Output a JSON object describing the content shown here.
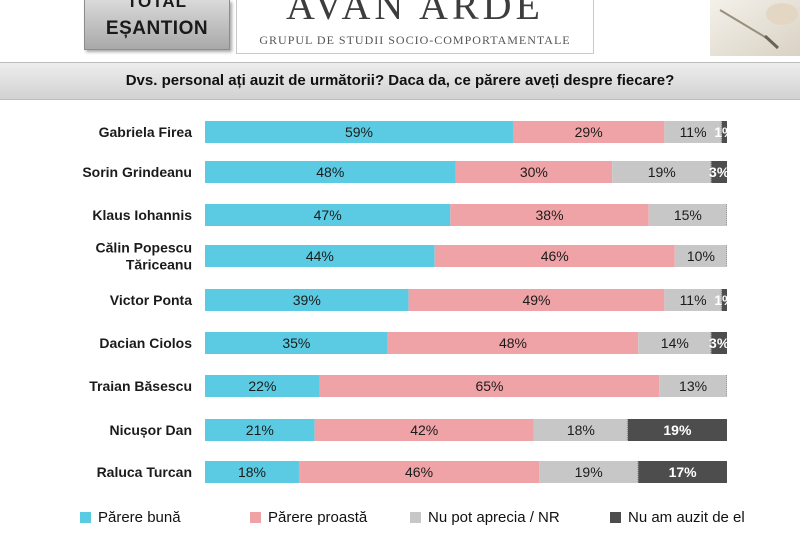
{
  "header": {
    "sample_top": "TOTAL",
    "sample_label": "EȘANTION",
    "logo_text": "AVAN   ARDE",
    "logo_subtitle": "GRUPUL DE STUDII SOCIO-COMPORTAMENTALE"
  },
  "question": "Dvs. personal ați auzit de următorii? Daca da, ce părere aveți despre fiecare?",
  "colors": {
    "good": "#5bcbe3",
    "bad": "#f0a3a6",
    "cannot": "#c7c7c7",
    "unheard": "#4d4d4d",
    "question_band": "#dedede"
  },
  "chart_data": {
    "type": "bar",
    "orientation": "horizontal",
    "stacked": true,
    "unit": "%",
    "categories": [
      [
        "Gabriela Firea"
      ],
      [
        "Sorin Grindeanu"
      ],
      [
        "Klaus Iohannis"
      ],
      [
        "Călin Popescu",
        "Tăriceanu"
      ],
      [
        "Victor Ponta"
      ],
      [
        "Dacian Ciolos"
      ],
      [
        "Traian Băsescu"
      ],
      [
        "Nicușor Dan"
      ],
      [
        "Raluca Turcan"
      ]
    ],
    "series": [
      {
        "name": "Părere bună",
        "values": [
          59,
          48,
          47,
          44,
          39,
          35,
          22,
          21,
          18
        ]
      },
      {
        "name": "Părere proastă",
        "values": [
          29,
          30,
          38,
          46,
          49,
          48,
          65,
          42,
          46
        ]
      },
      {
        "name": "Nu pot aprecia / NR",
        "values": [
          11,
          19,
          15,
          10,
          11,
          14,
          13,
          18,
          19
        ]
      },
      {
        "name": "Nu am auzit de el",
        "values": [
          1,
          3,
          null,
          null,
          1,
          3,
          null,
          19,
          17
        ]
      }
    ],
    "legend_position": "bottom",
    "grid": false
  }
}
